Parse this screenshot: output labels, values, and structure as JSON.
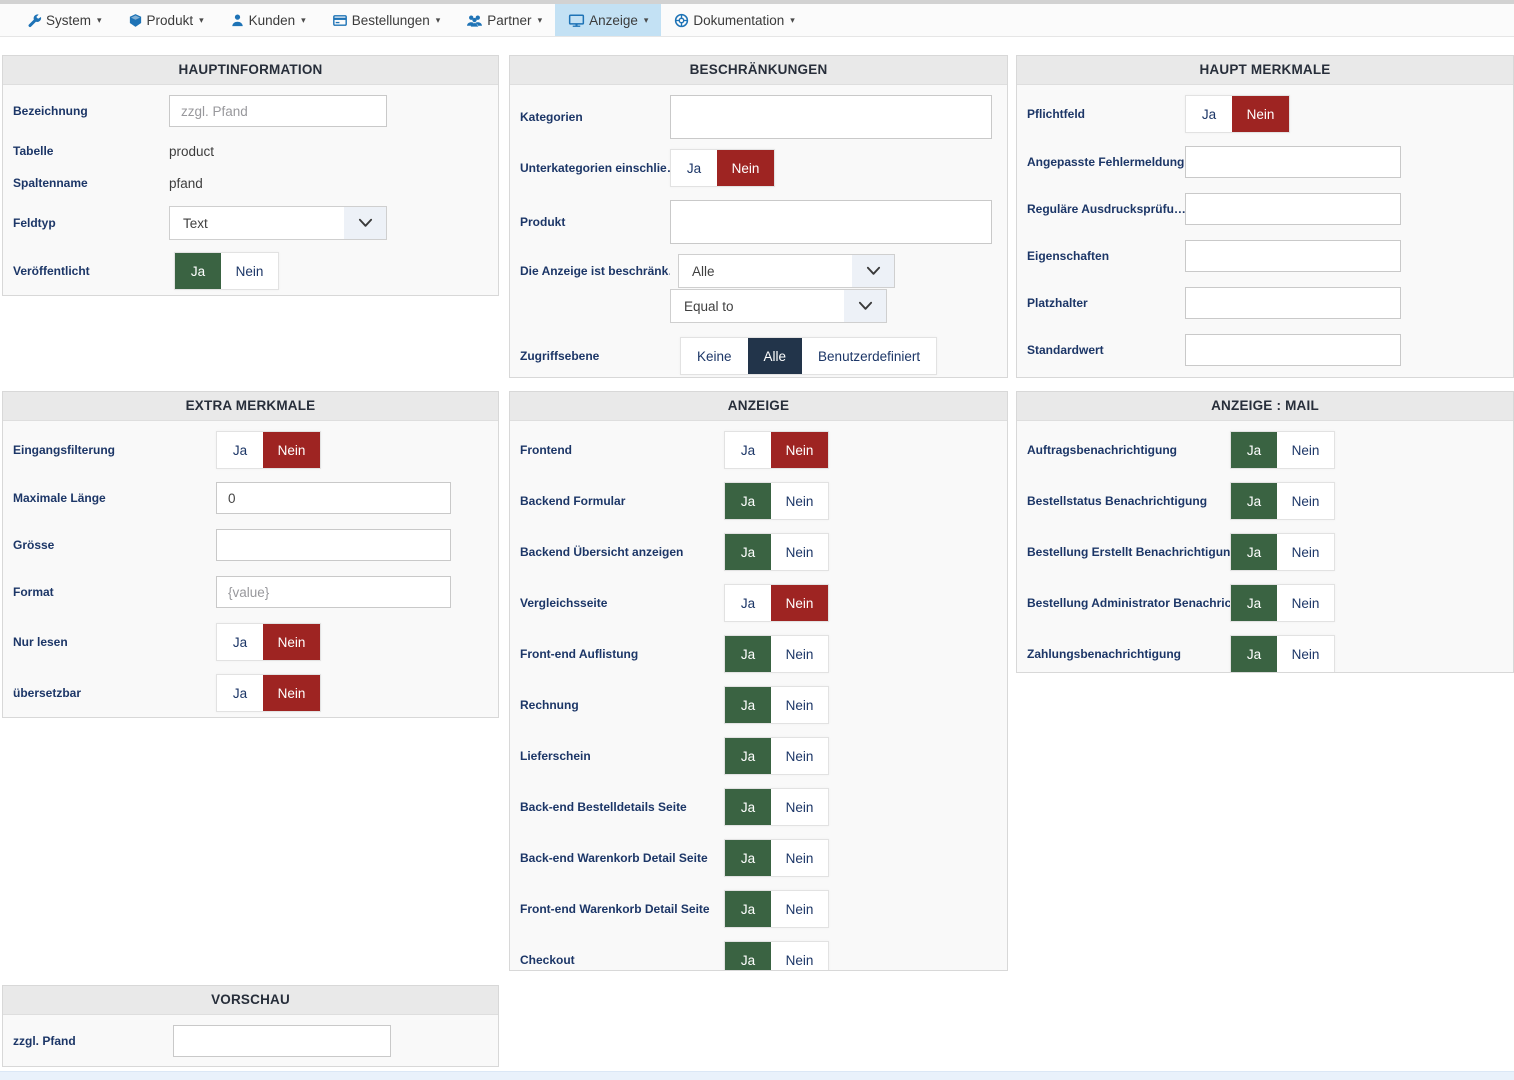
{
  "nav": {
    "items": [
      {
        "label": "System",
        "icon": "wrench-icon"
      },
      {
        "label": "Produkt",
        "icon": "product-icon"
      },
      {
        "label": "Kunden",
        "icon": "customer-icon"
      },
      {
        "label": "Bestellungen",
        "icon": "orders-icon"
      },
      {
        "label": "Partner",
        "icon": "partners-icon"
      },
      {
        "label": "Anzeige",
        "icon": "display-icon",
        "active": true
      },
      {
        "label": "Dokumentation",
        "icon": "documentation-icon"
      }
    ]
  },
  "toggle_labels": {
    "yes": "Ja",
    "no": "Nein"
  },
  "colors": {
    "yes_active_green": "#3a6342",
    "no_active_red": "#9e2422",
    "option_active_navy": "#22344a",
    "nav_icon_blue": "#1e73b6",
    "nav_active_bg": "#c3e1f4",
    "label_navy": "#1c3667"
  },
  "panels": {
    "hauptinformation": {
      "title": "HAUPTINFORMATION",
      "fields": [
        {
          "key": "bezeichnung",
          "label": "Bezeichnung",
          "type": "text",
          "value": "",
          "placeholder": "zzgl. Pfand"
        },
        {
          "key": "tabelle",
          "label": "Tabelle",
          "type": "static",
          "value": "product"
        },
        {
          "key": "spaltenname",
          "label": "Spaltenname",
          "type": "static",
          "value": "pfand"
        },
        {
          "key": "feldtyp",
          "label": "Feldtyp",
          "type": "select",
          "value": "Text"
        },
        {
          "key": "veroeffentlicht",
          "label": "Veröffentlicht",
          "type": "yesno",
          "value": "ja"
        }
      ]
    },
    "beschraenkungen": {
      "title": "BESCHRÄNKUNGEN",
      "fields": [
        {
          "key": "kategorien",
          "label": "Kategorien",
          "type": "bigtext",
          "value": ""
        },
        {
          "key": "unterkategorien-einschliessen",
          "label": "Unterkategorien einschlie…",
          "type": "yesno",
          "value": "nein"
        },
        {
          "key": "produkt",
          "label": "Produkt",
          "type": "bigtext",
          "value": ""
        },
        {
          "key": "anzeige-beschraenkt",
          "label": "Die Anzeige ist beschränk…",
          "type": "select2",
          "values": [
            "Alle",
            "Equal to"
          ]
        },
        {
          "key": "zugriffsebene",
          "label": "Zugriffsebene",
          "type": "options",
          "options": [
            "Keine",
            "Alle",
            "Benutzerdefiniert"
          ],
          "value": "Alle"
        }
      ]
    },
    "haupt_merkmale": {
      "title": "HAUPT MERKMALE",
      "fields": [
        {
          "key": "pflichtfeld",
          "label": "Pflichtfeld",
          "type": "yesno",
          "value": "nein"
        },
        {
          "key": "angepasste-fehlermeldung",
          "label": "Angepasste Fehlermeldung",
          "type": "text",
          "value": "",
          "placeholder": ""
        },
        {
          "key": "regulaere-ausdruckspruefung",
          "label": "Reguläre Ausdrucksprüfu…",
          "type": "text",
          "value": "",
          "placeholder": ""
        },
        {
          "key": "eigenschaften",
          "label": "Eigenschaften",
          "type": "text",
          "value": "",
          "placeholder": ""
        },
        {
          "key": "platzhalter",
          "label": "Platzhalter",
          "type": "text",
          "value": "",
          "placeholder": ""
        },
        {
          "key": "standardwert",
          "label": "Standardwert",
          "type": "text",
          "value": "",
          "placeholder": ""
        }
      ]
    },
    "extra_merkmale": {
      "title": "EXTRA MERKMALE",
      "fields": [
        {
          "key": "eingangsfilterung",
          "label": "Eingangsfilterung",
          "type": "yesno",
          "value": "nein"
        },
        {
          "key": "maximale-laenge",
          "label": "Maximale Länge",
          "type": "text",
          "value": "0",
          "placeholder": ""
        },
        {
          "key": "groesse",
          "label": "Grösse",
          "type": "text",
          "value": "",
          "placeholder": ""
        },
        {
          "key": "format",
          "label": "Format",
          "type": "text",
          "value": "",
          "placeholder": "{value}"
        },
        {
          "key": "nur-lesen",
          "label": "Nur lesen",
          "type": "yesno",
          "value": "nein"
        },
        {
          "key": "uebersetzbar",
          "label": "übersetzbar",
          "type": "yesno",
          "value": "nein"
        }
      ]
    },
    "anzeige": {
      "title": "ANZEIGE",
      "fields": [
        {
          "key": "frontend",
          "label": "Frontend",
          "type": "yesno",
          "value": "nein"
        },
        {
          "key": "backend-formular",
          "label": "Backend Formular",
          "type": "yesno",
          "value": "ja"
        },
        {
          "key": "backend-uebersicht",
          "label": "Backend Übersicht anzeigen",
          "type": "yesno",
          "value": "ja"
        },
        {
          "key": "vergleichsseite",
          "label": "Vergleichsseite",
          "type": "yesno",
          "value": "nein"
        },
        {
          "key": "frontend-auflistung",
          "label": "Front-end Auflistung",
          "type": "yesno",
          "value": "ja"
        },
        {
          "key": "rechnung",
          "label": "Rechnung",
          "type": "yesno",
          "value": "ja"
        },
        {
          "key": "lieferschein",
          "label": "Lieferschein",
          "type": "yesno",
          "value": "ja"
        },
        {
          "key": "backend-bestelldetails",
          "label": "Back-end Bestelldetails Seite",
          "type": "yesno",
          "value": "ja"
        },
        {
          "key": "backend-warenkorb",
          "label": "Back-end Warenkorb Detail Seite",
          "type": "yesno",
          "value": "ja"
        },
        {
          "key": "frontend-warenkorb",
          "label": "Front-end Warenkorb Detail Seite",
          "type": "yesno",
          "value": "ja"
        },
        {
          "key": "checkout",
          "label": "Checkout",
          "type": "yesno",
          "value": "ja"
        }
      ]
    },
    "anzeige_mail": {
      "title": "ANZEIGE : MAIL",
      "fields": [
        {
          "key": "auftragsbenachrichtigung",
          "label": "Auftragsbenachrichtigung",
          "type": "yesno",
          "value": "ja"
        },
        {
          "key": "bestellstatus",
          "label": "Bestellstatus Benachrichtigung",
          "type": "yesno",
          "value": "ja"
        },
        {
          "key": "bestellung-erstellt",
          "label": "Bestellung Erstellt Benachrichtigung",
          "type": "yesno",
          "value": "ja"
        },
        {
          "key": "bestellung-admin",
          "label": "Bestellung Administrator Benachric…",
          "type": "yesno",
          "value": "ja"
        },
        {
          "key": "zahlungsbenachrichtigung",
          "label": "Zahlungsbenachrichtigung",
          "type": "yesno",
          "value": "ja"
        }
      ]
    },
    "vorschau": {
      "title": "VORSCHAU",
      "fields": [
        {
          "key": "vorschau-zzgl-pfand",
          "label": "zzgl. Pfand",
          "type": "text",
          "value": "",
          "placeholder": ""
        }
      ]
    }
  }
}
